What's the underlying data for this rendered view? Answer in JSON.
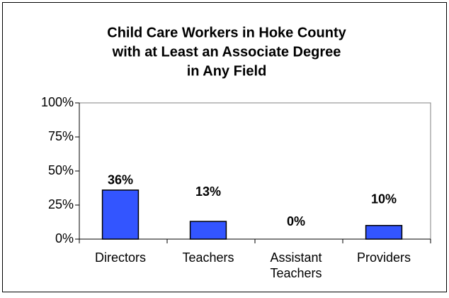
{
  "chart_data": {
    "type": "bar",
    "title": [
      "Child Care Workers in Hoke County",
      "with at Least an Associate Degree",
      "in Any Field"
    ],
    "categories": [
      "Directors",
      "Teachers",
      "Assistant Teachers",
      "Providers"
    ],
    "values": [
      36,
      13,
      0,
      10
    ],
    "value_labels": [
      "36%",
      "13%",
      "0%",
      "10%"
    ],
    "color": "#3355ff",
    "ylim": [
      0,
      100
    ],
    "yticks": [
      {
        "value": 0,
        "label": "0%"
      },
      {
        "value": 25,
        "label": "25%"
      },
      {
        "value": 50,
        "label": "50%"
      },
      {
        "value": 75,
        "label": "75%"
      },
      {
        "value": 100,
        "label": "100%"
      }
    ],
    "grid": false
  }
}
